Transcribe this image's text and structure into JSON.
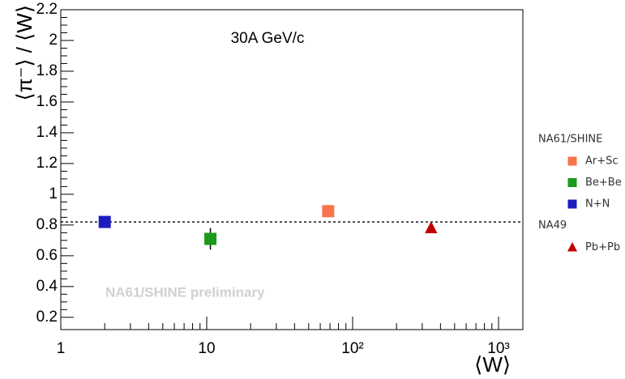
{
  "chart_data": {
    "type": "scatter",
    "title": "30A GeV/c",
    "annotation": "NA61/SHINE preliminary",
    "x_label": "⟨W⟩",
    "y_label": "⟨π⁻⟩ / ⟨W⟩",
    "log_x": true,
    "xlim": [
      1,
      1468
    ],
    "xticks": [
      1,
      10,
      {
        "value": 100,
        "label": "10²"
      },
      {
        "value": 1000,
        "label": "10³"
      }
    ],
    "ylim": [
      0.12,
      2.2
    ],
    "yticks": [
      0.2,
      0.4,
      0.6,
      0.8,
      1,
      1.2,
      1.4,
      1.6,
      1.8,
      2,
      2.2
    ],
    "reference_line": 0.82,
    "groups": [
      {
        "name": "NA61/SHINE",
        "series": [
          {
            "name": "Ar+Sc",
            "color": "#f8744a",
            "marker": "square",
            "x": [
              68
            ],
            "values": [
              0.89
            ],
            "errors": [
              0.03
            ]
          },
          {
            "name": "Be+Be",
            "color": "#1b9a1b",
            "marker": "square",
            "x": [
              10.6
            ],
            "values": [
              0.71
            ],
            "errors": [
              0.07
            ]
          },
          {
            "name": "N+N",
            "color": "#1c1cbf",
            "marker": "square",
            "x": [
              2
            ],
            "values": [
              0.82
            ],
            "errors": [
              0.01
            ]
          }
        ]
      },
      {
        "name": "NA49",
        "series": [
          {
            "name": "Pb+Pb",
            "color": "#c00000",
            "marker": "triangle",
            "x": [
              345
            ],
            "values": [
              0.78
            ],
            "errors": [
              0.03
            ]
          }
        ]
      }
    ]
  }
}
